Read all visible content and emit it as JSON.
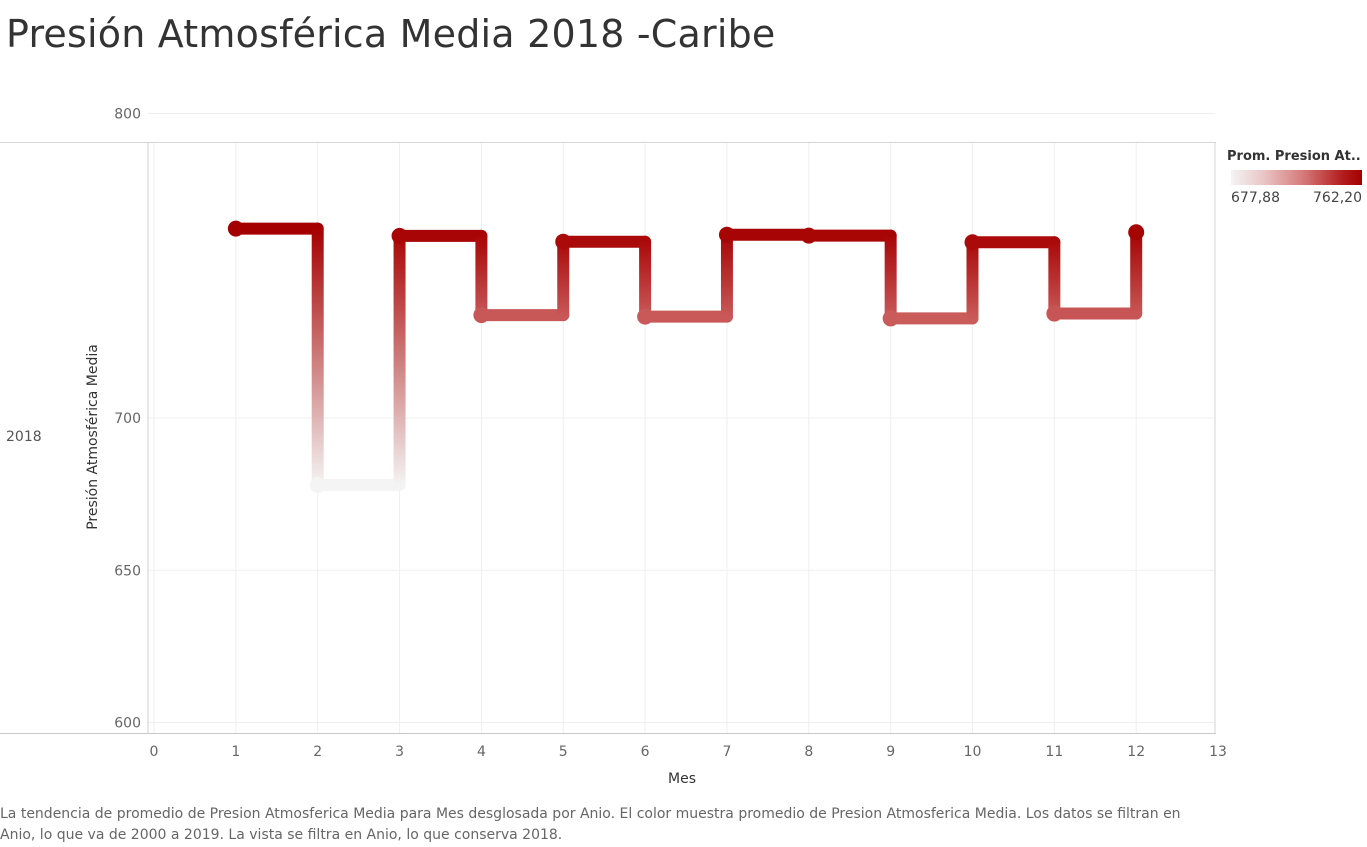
{
  "title": "Presión Atmosférica Media 2018 -Caribe",
  "row_label": "2018",
  "legend": {
    "title": "Prom. Presion At..",
    "min_label": "677,88",
    "max_label": "762,20",
    "min_color": "#f4f4f4",
    "max_color": "#a50000"
  },
  "caption": "La tendencia de promedio de Presion Atmosferica Media para Mes desglosada por Anio.  El color muestra promedio de Presion Atmosferica Media. Los datos se filtran en Anio, lo que va de 2000 a 2019. La vista se filtra en Anio, lo que conserva 2018.",
  "chart_data": {
    "type": "line",
    "step": true,
    "xlabel": "Mes",
    "ylabel": "Presión Atmosférica Media",
    "xlim": [
      0,
      13
    ],
    "ylim": [
      600,
      800
    ],
    "xticks": [
      0,
      1,
      2,
      3,
      4,
      5,
      6,
      7,
      8,
      9,
      10,
      11,
      12,
      13
    ],
    "yticks": [
      600,
      650,
      700,
      800
    ],
    "grid": true,
    "series": [
      {
        "x": [
          1,
          2,
          3,
          4,
          5,
          6,
          7,
          8,
          9,
          10,
          11,
          12
        ],
        "values": [
          762.2,
          678.0,
          759.8,
          733.8,
          757.9,
          733.3,
          760.2,
          759.9,
          732.7,
          757.7,
          734.3,
          761.0
        ]
      }
    ]
  }
}
